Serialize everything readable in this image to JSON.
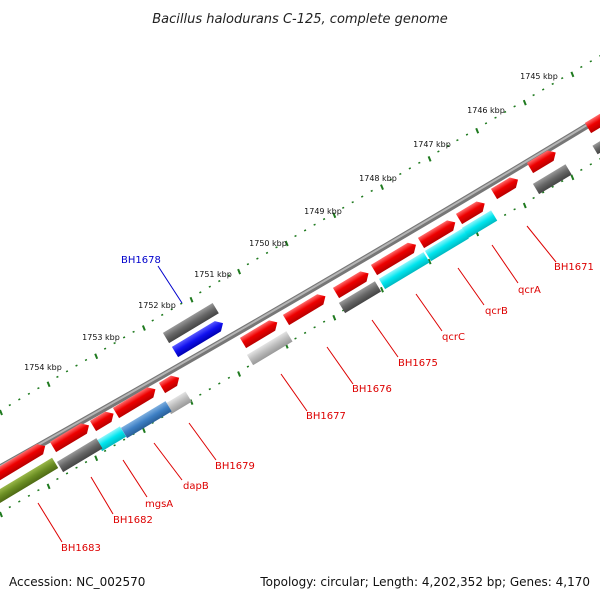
{
  "title": "Bacillus halodurans C-125, complete genome",
  "footer": {
    "accession": "Accession: NC_002570",
    "summary": "Topology: circular; Length: 4,202,352 bp; Genes: 4,170"
  },
  "ruler_ticks": [
    "1745 kbp",
    "1746 kbp",
    "1747 kbp",
    "1748 kbp",
    "1749 kbp",
    "1750 kbp",
    "1751 kbp",
    "1752 kbp",
    "1753 kbp",
    "1754 kbp"
  ],
  "gene_labels": [
    {
      "text": "BH1678",
      "color": "#0000cc"
    },
    {
      "text": "BH1671",
      "color": "#dd0000"
    },
    {
      "text": "qcrA",
      "color": "#dd0000"
    },
    {
      "text": "qcrB",
      "color": "#dd0000"
    },
    {
      "text": "qcrC",
      "color": "#dd0000"
    },
    {
      "text": "BH1675",
      "color": "#dd0000"
    },
    {
      "text": "BH1676",
      "color": "#dd0000"
    },
    {
      "text": "BH1677",
      "color": "#dd0000"
    },
    {
      "text": "BH1679",
      "color": "#dd0000"
    },
    {
      "text": "dapB",
      "color": "#dd0000"
    },
    {
      "text": "mgsA",
      "color": "#dd0000"
    },
    {
      "text": "BH1682",
      "color": "#dd0000"
    },
    {
      "text": "BH1683",
      "color": "#dd0000"
    }
  ],
  "colors": {
    "backbone": "#8a8a8a",
    "ruler_dots": "#1f7a1f",
    "cds": "#ee0000",
    "gene_gray": "#666666",
    "gene_light": "#bbbbbb",
    "gene_cyan": "#00e5ee",
    "gene_blue": "#1010ee",
    "gene_steel": "#3d7fc4",
    "gene_olive": "#6b8e23"
  }
}
